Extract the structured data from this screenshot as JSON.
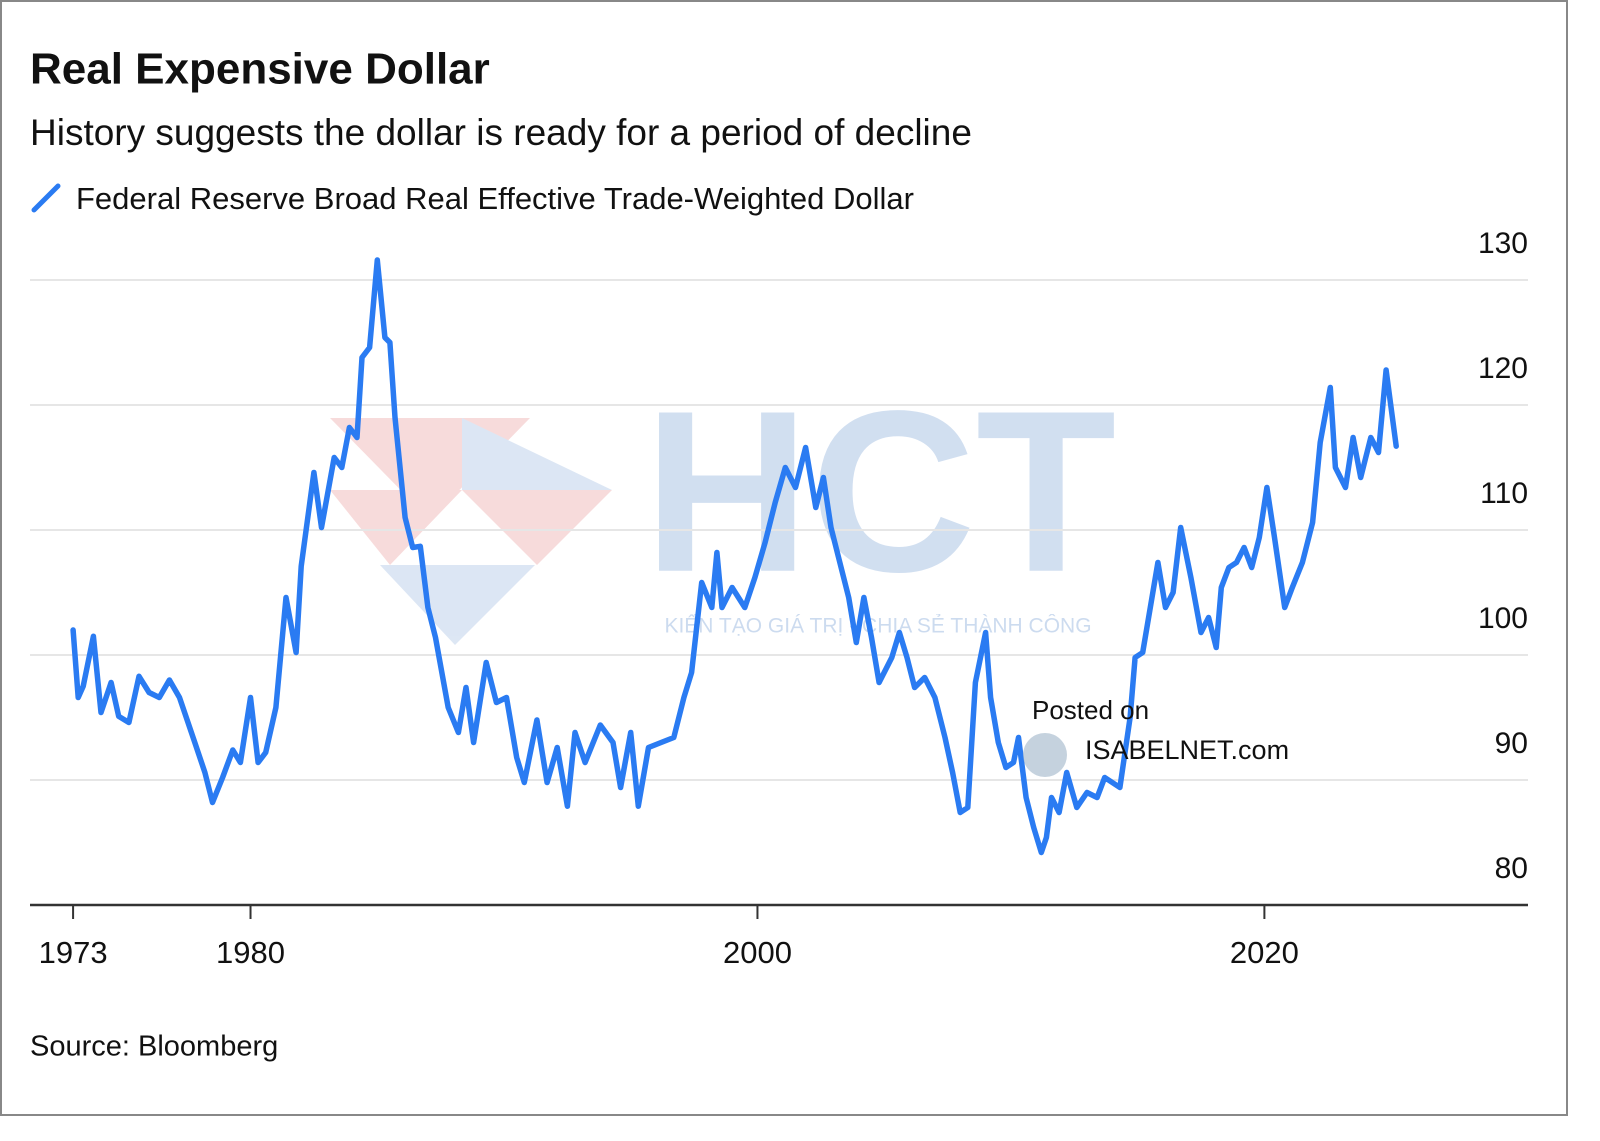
{
  "chart_data": {
    "type": "line",
    "title": "Real Expensive Dollar",
    "subtitle": "History suggests the dollar is ready for a period of decline",
    "source": "Source: Bloomberg",
    "watermarks": [
      "HCT",
      "KIẾN TẠO GIÁ TRỊ - CHIA SẺ THÀNH CÔNG",
      "Posted on",
      "ISABELNET.com"
    ],
    "xlim": [
      1971.3,
      2030.4
    ],
    "xticks": [
      1973,
      1980,
      2000,
      2020
    ],
    "ylim": [
      80,
      132
    ],
    "yticks": [
      80,
      90,
      100,
      110,
      120,
      130
    ],
    "grid": true,
    "x": [
      1973.0,
      1973.2,
      1973.4,
      1973.8,
      1974.1,
      1974.5,
      1974.8,
      1975.2,
      1975.6,
      1976.0,
      1976.4,
      1976.8,
      1977.2,
      1977.8,
      1978.2,
      1978.5,
      1978.9,
      1979.3,
      1979.6,
      1980.0,
      1980.3,
      1980.6,
      1981.0,
      1981.4,
      1981.8,
      1982.0,
      1982.5,
      1982.8,
      1983.3,
      1983.6,
      1983.9,
      1984.2,
      1984.4,
      1984.7,
      1985.0,
      1985.3,
      1985.5,
      1985.7,
      1986.1,
      1986.4,
      1986.7,
      1987.0,
      1987.3,
      1987.8,
      1988.2,
      1988.5,
      1988.8,
      1989.3,
      1989.7,
      1990.1,
      1990.5,
      1990.8,
      1991.3,
      1991.7,
      1992.1,
      1992.5,
      1992.8,
      1993.2,
      1993.8,
      1994.3,
      1994.6,
      1995.0,
      1995.3,
      1995.7,
      1996.2,
      1996.7,
      1997.1,
      1997.4,
      1997.8,
      1998.2,
      1998.4,
      1998.6,
      1999.0,
      1999.5,
      1999.9,
      2000.3,
      2000.7,
      2001.1,
      2001.5,
      2001.9,
      2002.3,
      2002.6,
      2002.9,
      2003.3,
      2003.6,
      2003.9,
      2004.2,
      2004.5,
      2004.8,
      2005.3,
      2005.6,
      2005.9,
      2006.2,
      2006.6,
      2007.0,
      2007.4,
      2007.7,
      2008.0,
      2008.3,
      2008.6,
      2009.0,
      2009.2,
      2009.5,
      2009.8,
      2010.1,
      2010.3,
      2010.6,
      2010.9,
      2011.2,
      2011.4,
      2011.6,
      2011.9,
      2012.2,
      2012.6,
      2013.0,
      2013.4,
      2013.7,
      2014.3,
      2014.7,
      2014.9,
      2015.2,
      2015.5,
      2015.8,
      2016.1,
      2016.4,
      2016.7,
      2017.1,
      2017.5,
      2017.8,
      2018.1,
      2018.3,
      2018.6,
      2018.9,
      2019.2,
      2019.5,
      2019.8,
      2020.1,
      2020.4,
      2020.8,
      2021.1,
      2021.5,
      2021.9,
      2022.2,
      2022.6,
      2022.8,
      2023.2,
      2023.5,
      2023.8,
      2024.2,
      2024.5,
      2024.8,
      2025.2
    ],
    "series": [
      {
        "name": "Federal Reserve Broad Real Effective Trade-Weighted Dollar",
        "color": "#2a7bf2",
        "values": [
          102,
          96.6,
          97.5,
          101.5,
          95.4,
          97.8,
          95.1,
          94.6,
          98.3,
          97,
          96.6,
          98,
          96.6,
          93,
          90.6,
          88.2,
          90.2,
          92.4,
          91.4,
          96.6,
          91.4,
          92.2,
          95.8,
          104.6,
          100.2,
          107.1,
          114.6,
          110.2,
          115.8,
          115,
          118.2,
          117.4,
          123.8,
          124.6,
          131.6,
          125.4,
          125,
          119,
          111,
          108.6,
          108.7,
          103.8,
          101.4,
          95.8,
          93.8,
          97.4,
          93,
          99.4,
          96.2,
          96.6,
          91.8,
          89.8,
          94.8,
          89.8,
          92.6,
          87.9,
          93.8,
          91.4,
          94.4,
          93,
          89.4,
          93.8,
          87.9,
          92.6,
          93,
          93.4,
          96.6,
          98.6,
          105.8,
          103.8,
          108.2,
          103.8,
          105.4,
          103.8,
          106.2,
          109,
          112.2,
          115,
          113.4,
          116.6,
          111.8,
          114.2,
          110.2,
          107,
          104.6,
          101,
          104.6,
          101.4,
          97.8,
          99.8,
          101.8,
          99.8,
          97.4,
          98.2,
          96.6,
          93.4,
          90.6,
          87.4,
          87.8,
          97.8,
          101.8,
          96.6,
          93,
          91,
          91.4,
          93.4,
          88.6,
          86.2,
          84.2,
          85.4,
          88.6,
          87.4,
          90.6,
          87.8,
          89,
          88.6,
          90.2,
          89.4,
          95,
          99.8,
          100.2,
          103.8,
          107.4,
          103.8,
          105,
          110.2,
          106.2,
          101.8,
          103,
          100.6,
          105.4,
          107,
          107.4,
          108.6,
          107,
          109.4,
          113.4,
          109.4,
          103.8,
          105.4,
          107.4,
          110.6,
          117,
          121.4,
          115,
          113.4,
          117.4,
          114.2,
          117.4,
          116.2,
          122.8,
          116.7
        ]
      }
    ]
  }
}
